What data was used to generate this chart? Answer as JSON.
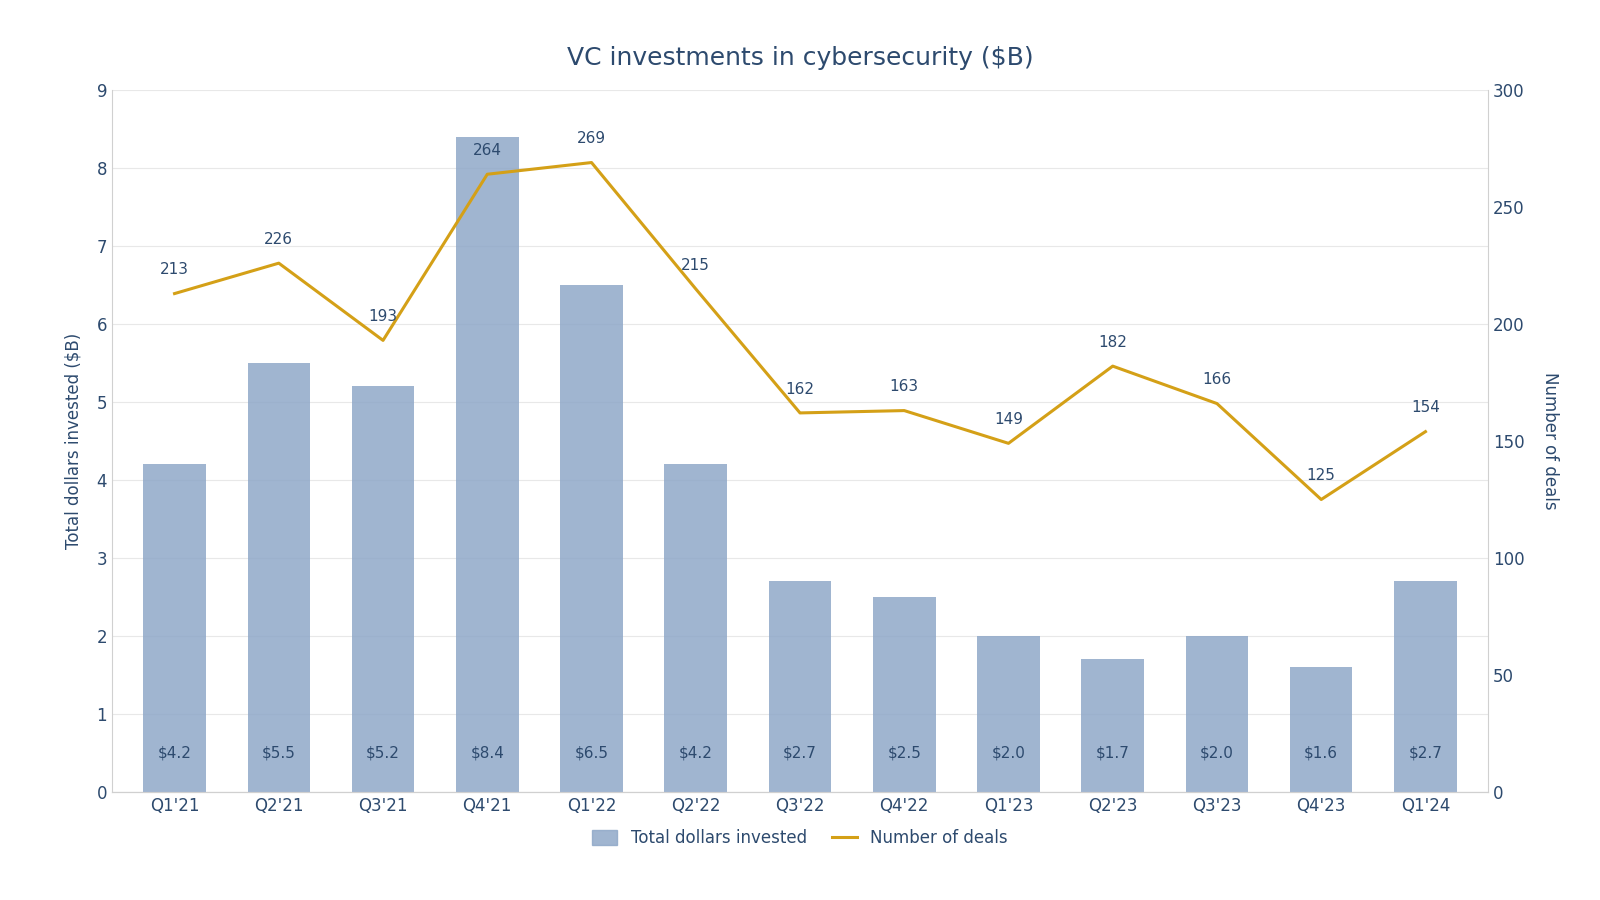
{
  "title": "VC investments in cybersecurity ($B)",
  "categories": [
    "Q1'21",
    "Q2'21",
    "Q3'21",
    "Q4'21",
    "Q1'22",
    "Q2'22",
    "Q3'22",
    "Q4'22",
    "Q1'23",
    "Q2'23",
    "Q3'23",
    "Q4'23",
    "Q1'24"
  ],
  "bar_values": [
    4.2,
    5.5,
    5.2,
    8.4,
    6.5,
    4.2,
    2.7,
    2.5,
    2.0,
    1.7,
    2.0,
    1.6,
    2.7
  ],
  "bar_labels": [
    "$4.2",
    "$5.5",
    "$5.2",
    "$8.4",
    "$6.5",
    "$4.2",
    "$2.7",
    "$2.5",
    "$2.0",
    "$1.7",
    "$2.0",
    "$1.6",
    "$2.7"
  ],
  "deal_counts": [
    213,
    226,
    193,
    264,
    269,
    215,
    162,
    163,
    149,
    182,
    166,
    125,
    154
  ],
  "bar_color": "#8fa8c8",
  "line_color": "#d4a017",
  "background_color": "#ffffff",
  "ylabel_left": "Total dollars invested ($B)",
  "ylabel_right": "Number of deals",
  "ylim_left": [
    0,
    9
  ],
  "ylim_right": [
    0,
    300
  ],
  "yticks_left": [
    0,
    1,
    2,
    3,
    4,
    5,
    6,
    7,
    8,
    9
  ],
  "yticks_right": [
    0,
    50,
    100,
    150,
    200,
    250,
    300
  ],
  "legend_bar_label": "Total dollars invested",
  "legend_line_label": "Number of deals",
  "title_fontsize": 18,
  "label_fontsize": 12,
  "tick_fontsize": 12,
  "bar_label_fontsize": 11,
  "deal_label_fontsize": 11,
  "text_color": "#2d4a6e",
  "axis_color": "#2d4a6e"
}
